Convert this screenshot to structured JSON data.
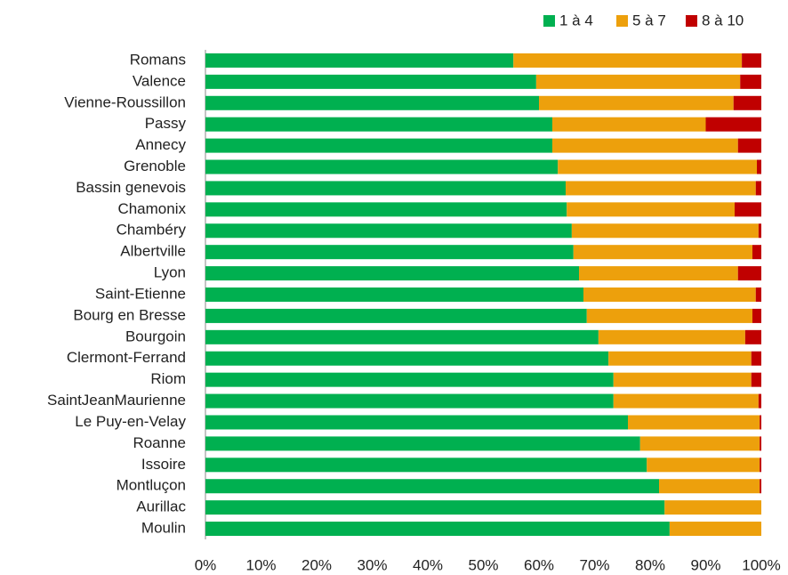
{
  "chart_data": {
    "type": "stacked-bar-horizontal",
    "categories": [
      "Romans",
      "Valence",
      "Vienne-Roussillon",
      "Passy",
      "Annecy",
      "Grenoble",
      "Bassin genevois",
      "Chamonix",
      "Chambéry",
      "Albertville",
      "Lyon",
      "Saint-Etienne",
      "Bourg en Bresse",
      "Bourgoin",
      "Clermont-Ferrand",
      "Riom",
      "SaintJeanMaurienne",
      "Le Puy-en-Velay",
      "Roanne",
      "Issoire",
      "Montluçon",
      "Aurillac",
      "Moulin"
    ],
    "series": [
      {
        "name": "1 à 4",
        "color": "#00b050",
        "values": [
          55.4,
          59.5,
          60,
          62.4,
          62.4,
          63.4,
          64.8,
          65,
          65.9,
          66.2,
          67.2,
          68,
          68.6,
          70.7,
          72.5,
          73.4,
          73.4,
          76,
          78.2,
          79.4,
          81.6,
          82.6,
          83.5
        ]
      },
      {
        "name": "5 à 7",
        "color": "#eda00c",
        "values": [
          41.1,
          36.7,
          35,
          27.6,
          33.4,
          35.8,
          34.2,
          30.2,
          33.6,
          32.2,
          28.6,
          31,
          29.8,
          26.4,
          25.7,
          24.8,
          26.1,
          23.7,
          21.5,
          20.3,
          18.1,
          17.4,
          16.5
        ]
      },
      {
        "name": "8 à 10",
        "color": "#c00000",
        "values": [
          3.5,
          3.8,
          5,
          10,
          4.2,
          0.8,
          1,
          4.8,
          0.5,
          1.6,
          4.2,
          1,
          1.6,
          2.9,
          1.8,
          1.8,
          0.5,
          0.3,
          0.3,
          0.3,
          0.3,
          0,
          0
        ]
      }
    ],
    "xlim": [
      0,
      100
    ],
    "xticks": [
      {
        "value": 0,
        "label": "0%"
      },
      {
        "value": 10,
        "label": "10%"
      },
      {
        "value": 20,
        "label": "20%"
      },
      {
        "value": 30,
        "label": "30%"
      },
      {
        "value": 40,
        "label": "40%"
      },
      {
        "value": 50,
        "label": "50%"
      },
      {
        "value": 60,
        "label": "60%"
      },
      {
        "value": 70,
        "label": "70%"
      },
      {
        "value": 80,
        "label": "80%"
      },
      {
        "value": 90,
        "label": "90%"
      },
      {
        "value": 100,
        "label": "100%"
      }
    ],
    "legend": "top-right"
  }
}
